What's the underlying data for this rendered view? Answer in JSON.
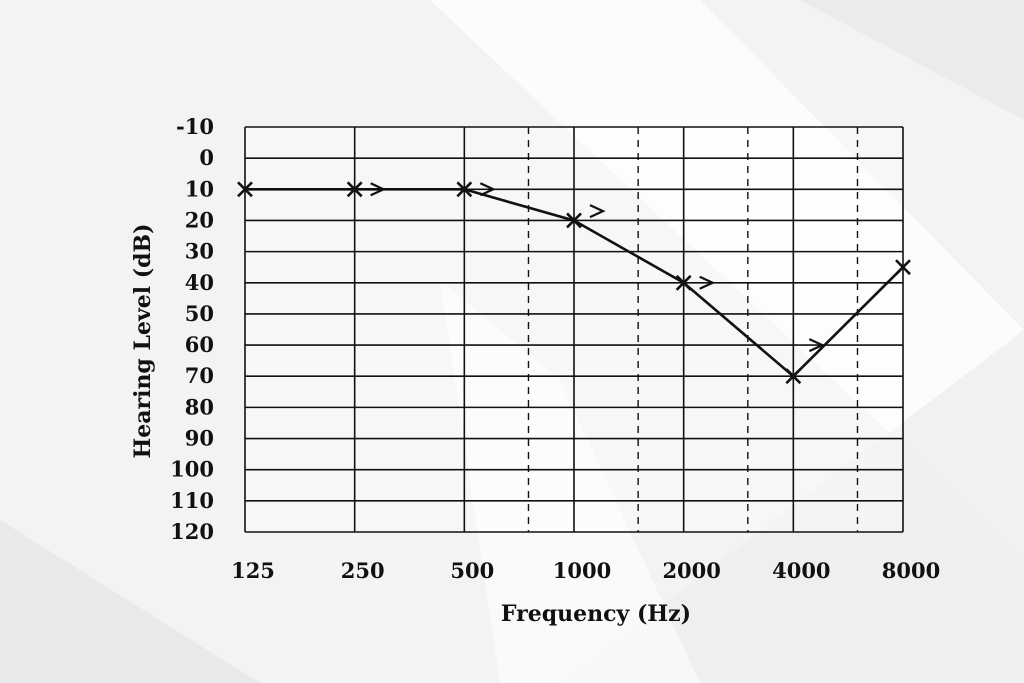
{
  "chart_data": {
    "type": "line",
    "xlabel": "Frequency (Hz)",
    "ylabel": "Hearing Level (dB)",
    "x_ticks": [
      "125",
      "250",
      "500",
      "1000",
      "2000",
      "4000",
      "8000"
    ],
    "x_intermediate": [
      750,
      1500,
      3000,
      6000
    ],
    "y_ticks": [
      "-10",
      "0",
      "10",
      "20",
      "30",
      "40",
      "50",
      "60",
      "70",
      "80",
      "90",
      "100",
      "110",
      "120"
    ],
    "ylim": [
      -10,
      120
    ],
    "y_inverted": true,
    "x_scale": "log2",
    "grid": true,
    "series": [
      {
        "marker": "x",
        "x": [
          125,
          250,
          500,
          1000,
          2000,
          4000,
          8000
        ],
        "y": [
          10,
          10,
          10,
          20,
          40,
          70,
          35
        ]
      },
      {
        "marker": ">",
        "connected": false,
        "x": [
          250,
          500,
          1000,
          2000,
          4000
        ],
        "y": [
          10,
          10,
          17,
          40,
          60
        ]
      }
    ],
    "colors": {
      "line": "#111111",
      "grid": "#111111",
      "background": "#ffffff"
    }
  }
}
